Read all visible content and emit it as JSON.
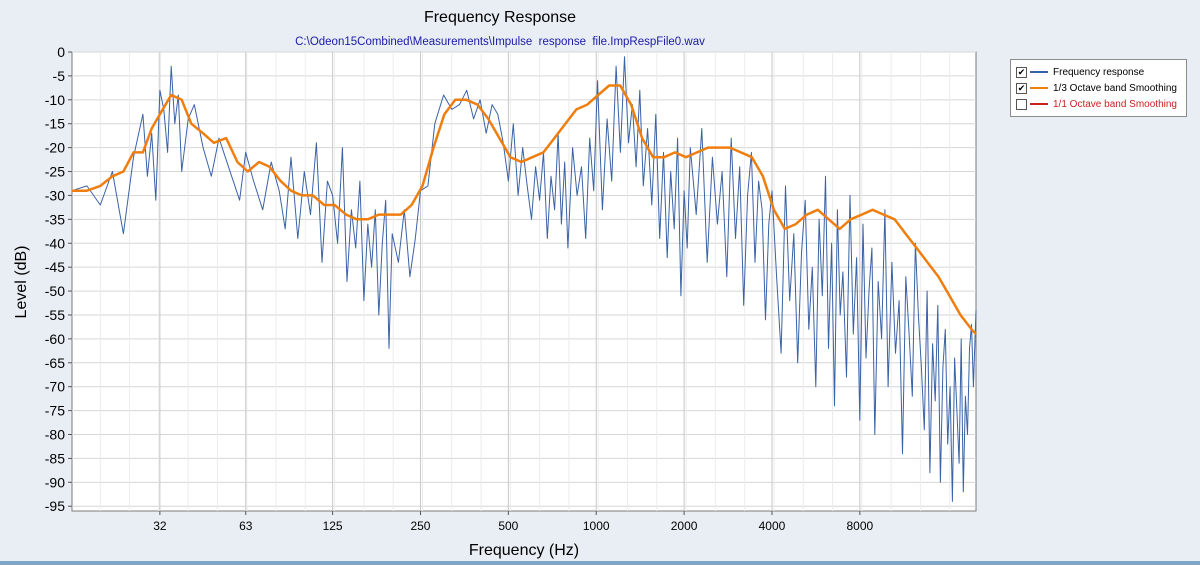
{
  "chart_data": {
    "type": "line",
    "title": "Frequency Response",
    "subtitle": "C:\\Odeon15Combined\\Measurements\\Impulse  response  file.ImpRespFile0.wav",
    "xlabel": "Frequency (Hz)",
    "ylabel": "Level (dB)",
    "x_scale": "log",
    "xlim": [
      16,
      20000
    ],
    "ylim": [
      -96,
      0
    ],
    "x_ticks": [
      32,
      63,
      125,
      250,
      500,
      1000,
      2000,
      4000,
      8000
    ],
    "y_ticks": [
      0,
      -5,
      -10,
      -15,
      -20,
      -25,
      -30,
      -35,
      -40,
      -45,
      -50,
      -55,
      -60,
      -65,
      -70,
      -75,
      -80,
      -85,
      -90,
      -95
    ],
    "grid": true,
    "legend_position": "right",
    "series": [
      {
        "name": "Frequency response",
        "color": "#3a62a6",
        "x": [
          16,
          18,
          20,
          22,
          24,
          26,
          28,
          29,
          30,
          31,
          32,
          33,
          34,
          35,
          36,
          37,
          38,
          40,
          42,
          45,
          48,
          51,
          55,
          60,
          63,
          67,
          72,
          77,
          82,
          86,
          90,
          95,
          100,
          105,
          110,
          115,
          120,
          125,
          130,
          135,
          140,
          145,
          150,
          155,
          160,
          165,
          170,
          175,
          180,
          185,
          190,
          195,
          200,
          210,
          220,
          230,
          240,
          250,
          265,
          280,
          300,
          320,
          340,
          360,
          380,
          400,
          420,
          440,
          460,
          480,
          500,
          520,
          540,
          560,
          580,
          600,
          620,
          640,
          660,
          680,
          700,
          720,
          740,
          760,
          780,
          800,
          830,
          860,
          890,
          920,
          950,
          980,
          1010,
          1050,
          1090,
          1130,
          1170,
          1210,
          1250,
          1290,
          1330,
          1370,
          1410,
          1450,
          1500,
          1550,
          1600,
          1650,
          1700,
          1750,
          1800,
          1850,
          1900,
          1950,
          2000,
          2050,
          2100,
          2150,
          2200,
          2300,
          2400,
          2500,
          2600,
          2700,
          2800,
          2900,
          3000,
          3100,
          3200,
          3300,
          3400,
          3500,
          3600,
          3700,
          3800,
          3900,
          4000,
          4150,
          4300,
          4450,
          4600,
          4750,
          4900,
          5050,
          5200,
          5350,
          5500,
          5650,
          5800,
          5950,
          6100,
          6250,
          6400,
          6550,
          6700,
          6850,
          7000,
          7200,
          7400,
          7600,
          7800,
          8000,
          8200,
          8400,
          8600,
          8800,
          9000,
          9250,
          9500,
          9750,
          10000,
          10300,
          10600,
          10900,
          11200,
          11500,
          11800,
          12100,
          12400,
          12700,
          13000,
          13300,
          13600,
          13900,
          14200,
          14500,
          14800,
          15100,
          15400,
          15700,
          16000,
          16300,
          16600,
          16900,
          17200,
          17500,
          17800,
          18100,
          18400,
          18700,
          19000,
          19300,
          19600,
          20000
        ],
        "y": [
          -29,
          -28,
          -32,
          -25,
          -38,
          -22,
          -13,
          -26,
          -17,
          -31,
          -8,
          -12,
          -21,
          -3,
          -15,
          -9,
          -25,
          -14,
          -11,
          -20,
          -26,
          -18,
          -24,
          -31,
          -21,
          -27,
          -33,
          -23,
          -29,
          -37,
          -22,
          -39,
          -25,
          -34,
          -19,
          -44,
          -27,
          -30,
          -40,
          -20,
          -48,
          -33,
          -41,
          -27,
          -52,
          -36,
          -45,
          -33,
          -55,
          -40,
          -31,
          -62,
          -38,
          -44,
          -33,
          -47,
          -39,
          -29,
          -28,
          -15,
          -9,
          -12,
          -11,
          -8,
          -14,
          -10,
          -17,
          -11,
          -13,
          -19,
          -27,
          -15,
          -30,
          -20,
          -28,
          -35,
          -24,
          -31,
          -21,
          -39,
          -26,
          -33,
          -17,
          -36,
          -23,
          -41,
          -20,
          -30,
          -24,
          -39,
          -18,
          -29,
          -6,
          -33,
          -14,
          -27,
          -3,
          -21,
          -1,
          -19,
          -11,
          -24,
          -8,
          -28,
          -16,
          -32,
          -13,
          -39,
          -21,
          -43,
          -25,
          -37,
          -18,
          -51,
          -29,
          -41,
          -20,
          -27,
          -34,
          -16,
          -44,
          -22,
          -36,
          -25,
          -47,
          -18,
          -39,
          -24,
          -53,
          -30,
          -21,
          -44,
          -27,
          -33,
          -56,
          -36,
          -29,
          -47,
          -63,
          -28,
          -52,
          -38,
          -65,
          -42,
          -31,
          -58,
          -45,
          -70,
          -35,
          -51,
          -26,
          -62,
          -40,
          -74,
          -33,
          -55,
          -46,
          -68,
          -30,
          -59,
          -43,
          -77,
          -36,
          -64,
          -50,
          -41,
          -80,
          -48,
          -60,
          -33,
          -70,
          -44,
          -63,
          -52,
          -84,
          -47,
          -59,
          -72,
          -40,
          -55,
          -66,
          -79,
          -50,
          -88,
          -61,
          -73,
          -53,
          -90,
          -66,
          -58,
          -82,
          -70,
          -94,
          -64,
          -75,
          -86,
          -60,
          -92,
          -72,
          -80,
          -62,
          -57,
          -70,
          -54
        ]
      },
      {
        "name": "1/3 Octave band Smoothing",
        "color": "#f07e0f",
        "x": [
          16,
          18,
          20,
          22,
          24,
          26,
          28,
          30,
          32,
          35,
          38,
          41,
          45,
          49,
          54,
          59,
          64,
          70,
          76,
          83,
          90,
          98,
          107,
          117,
          127,
          139,
          151,
          165,
          180,
          196,
          214,
          233,
          254,
          277,
          302,
          329,
          359,
          392,
          427,
          466,
          508,
          554,
          604,
          659,
          719,
          784,
          855,
          932,
          1016,
          1108,
          1208,
          1317,
          1436,
          1566,
          1708,
          1862,
          2031,
          2214,
          2415,
          2633,
          2871,
          3131,
          3414,
          3723,
          4060,
          4427,
          4827,
          5264,
          5740,
          6259,
          6826,
          7443,
          8116,
          8850,
          9651,
          10524,
          11476,
          12514,
          13646,
          14881,
          16227,
          17695,
          19295,
          20000
        ],
        "y": [
          -29,
          -29,
          -28,
          -26,
          -25,
          -21,
          -21,
          -16,
          -13,
          -9,
          -10,
          -15,
          -17,
          -19,
          -18,
          -23,
          -25,
          -23,
          -24,
          -27,
          -29,
          -30,
          -30,
          -32,
          -32,
          -34,
          -35,
          -35,
          -34,
          -34,
          -34,
          -32,
          -28,
          -20,
          -13,
          -10,
          -10,
          -11,
          -14,
          -18,
          -22,
          -23,
          -22,
          -21,
          -18,
          -15,
          -12,
          -11,
          -9,
          -7,
          -7,
          -11,
          -18,
          -22,
          -22,
          -21,
          -22,
          -21,
          -20,
          -20,
          -20,
          -21,
          -22,
          -26,
          -33,
          -37,
          -36,
          -34,
          -33,
          -35,
          -37,
          -35,
          -34,
          -33,
          -34,
          -35,
          -38,
          -41,
          -44,
          -47,
          -51,
          -55,
          -58,
          -59
        ]
      },
      {
        "name": "1/1 Octave band Smoothing",
        "color": "#cc1f1f",
        "visible": false,
        "x": [],
        "y": []
      }
    ]
  },
  "legend": {
    "items": [
      {
        "label": "Frequency response",
        "checked": "✔",
        "color": "#3a62a6"
      },
      {
        "label": "1/3 Octave band Smoothing",
        "checked": "✔",
        "color": "#f07e0f"
      },
      {
        "label": "1/1 Octave band Smoothing",
        "checked": "",
        "color": "#cc1f1f"
      }
    ]
  }
}
